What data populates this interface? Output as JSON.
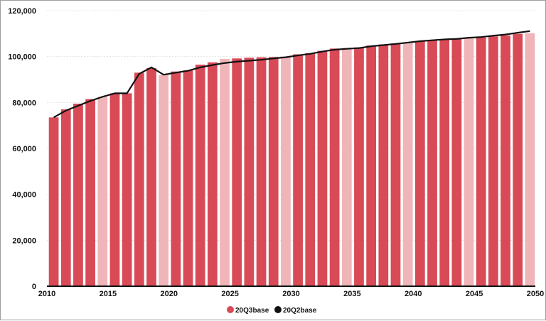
{
  "chart_data": {
    "type": "bar",
    "categories": [
      2011,
      2012,
      2013,
      2014,
      2015,
      2016,
      2017,
      2018,
      2019,
      2020,
      2021,
      2022,
      2023,
      2024,
      2025,
      2026,
      2027,
      2028,
      2029,
      2030,
      2031,
      2032,
      2033,
      2034,
      2035,
      2036,
      2037,
      2038,
      2039,
      2040,
      2041,
      2042,
      2043,
      2044,
      2045,
      2046,
      2047,
      2048,
      2049,
      2050
    ],
    "series": [
      {
        "name": "20Q3base",
        "kind": "bar",
        "color": "#d94a57",
        "values": [
          73500,
          77000,
          79500,
          81500,
          82500,
          84000,
          84000,
          93000,
          95000,
          92000,
          93500,
          94000,
          96500,
          97500,
          99000,
          99200,
          99500,
          99700,
          99800,
          100000,
          101000,
          101500,
          102500,
          103500,
          103800,
          104000,
          104800,
          105300,
          105700,
          106000,
          106700,
          107300,
          107600,
          107800,
          108000,
          108300,
          108800,
          109200,
          109900,
          110200
        ],
        "light_categories": [
          2015,
          2020,
          2025,
          2030,
          2035,
          2040,
          2045,
          2050
        ],
        "light_color": "#f0b5b9"
      },
      {
        "name": "20Q2base",
        "kind": "line",
        "color": "#111111",
        "values": [
          73500,
          76500,
          78600,
          80700,
          82500,
          84000,
          84000,
          92500,
          95300,
          92100,
          93000,
          93800,
          95300,
          96300,
          97200,
          97800,
          98200,
          98600,
          99200,
          99700,
          100500,
          101200,
          102200,
          103000,
          103400,
          103700,
          104500,
          105000,
          105500,
          106100,
          106700,
          107100,
          107500,
          107700,
          108200,
          108500,
          109100,
          109600,
          110400,
          111100
        ]
      }
    ],
    "ylim": [
      0,
      120000
    ],
    "yticks": [
      "0",
      "20,000",
      "40,000",
      "60,000",
      "80,000",
      "100,000",
      "120,000"
    ],
    "xlim": [
      2010,
      2050
    ],
    "xticks": [
      "2010",
      "2015",
      "2020",
      "2025",
      "2030",
      "2035",
      "2040",
      "2045",
      "2050"
    ],
    "grid": true,
    "legend_position": "bottom-center"
  }
}
